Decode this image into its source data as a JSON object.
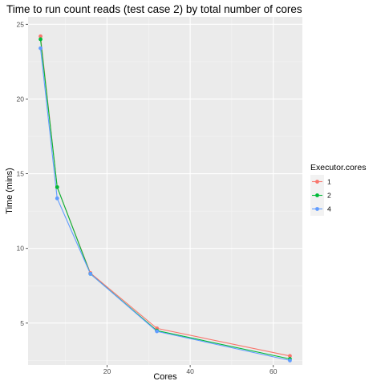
{
  "chart_data": {
    "type": "line",
    "title": "Time to run count reads (test case 2) by total number of cores",
    "xlabel": "Cores",
    "ylabel": "Time (mins)",
    "xlim": [
      1,
      67
    ],
    "ylim": [
      2.2,
      25.5
    ],
    "x_ticks": [
      20,
      40,
      60
    ],
    "y_ticks": [
      5,
      10,
      15,
      20,
      25
    ],
    "grid": true,
    "legend": {
      "title": "Executor.cores",
      "position": "right"
    },
    "x": [
      4,
      8,
      16,
      32,
      64
    ],
    "series": [
      {
        "name": "1",
        "color": "#f8766d",
        "values": [
          24.2,
          14.1,
          8.35,
          4.65,
          2.8
        ]
      },
      {
        "name": "2",
        "color": "#00ba38",
        "values": [
          24.0,
          14.1,
          8.3,
          4.5,
          2.6
        ]
      },
      {
        "name": "4",
        "color": "#619cff",
        "values": [
          23.4,
          13.35,
          8.3,
          4.45,
          2.5
        ]
      }
    ]
  }
}
